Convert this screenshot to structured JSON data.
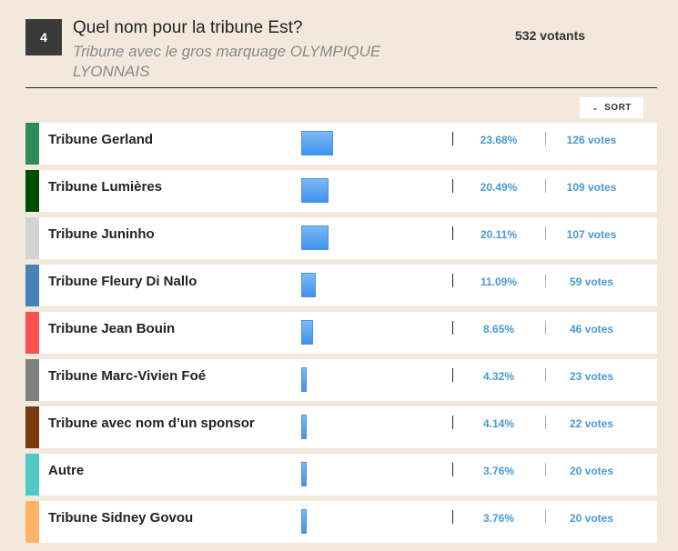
{
  "question": {
    "number": "4",
    "title": "Quel nom pour la tribune Est?",
    "subtitle": "Tribune avec le gros marquage OLYMPIQUE LYONNAIS",
    "voters": "532 votants"
  },
  "sort_label": "SORT",
  "options": [
    {
      "label": "Tribune Gerland",
      "percent": "23.68%",
      "votes": "126 votes",
      "share": 23.68,
      "color": "#2e8b57"
    },
    {
      "label": "Tribune Lumières",
      "percent": "20.49%",
      "votes": "109 votes",
      "share": 20.49,
      "color": "#004d00"
    },
    {
      "label": "Tribune Juninho",
      "percent": "20.11%",
      "votes": "107 votes",
      "share": 20.11,
      "color": "#d3d3d3"
    },
    {
      "label": "Tribune Fleury Di Nallo",
      "percent": "11.09%",
      "votes": "59 votes",
      "share": 11.09,
      "color": "#4682b4"
    },
    {
      "label": "Tribune Jean Bouin",
      "percent": "8.65%",
      "votes": "46 votes",
      "share": 8.65,
      "color": "#ff4f4f"
    },
    {
      "label": "Tribune Marc-Vivien Foé",
      "percent": "4.32%",
      "votes": "23 votes",
      "share": 4.32,
      "color": "#808080"
    },
    {
      "label": "Tribune avec nom d’un sponsor",
      "percent": "4.14%",
      "votes": "22 votes",
      "share": 4.14,
      "color": "#7a3b10"
    },
    {
      "label": "Autre",
      "percent": "3.76%",
      "votes": "20 votes",
      "share": 3.76,
      "color": "#4fc9c4"
    },
    {
      "label": "Tribune Sidney Govou",
      "percent": "3.76%",
      "votes": "20 votes",
      "share": 3.76,
      "color": "#ffb366"
    }
  ]
}
